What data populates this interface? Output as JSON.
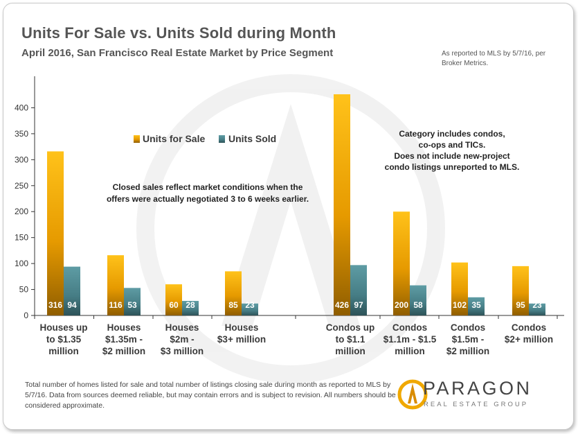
{
  "title": "Units For Sale vs. Units Sold during Month",
  "subtitle": "April 2016, San Francisco Real Estate Market by Price Segment",
  "source_note": "As reported to MLS by 5/7/16, per Broker Metrics.",
  "footnote": "Total number of homes listed for sale and total number of listings closing sale during month as reported to MLS by 5/7/16. Data from sources deemed reliable, but may contain errors and is subject to revision. All numbers should be considered approximate.",
  "brand": {
    "name": "PARAGON",
    "tagline": "REAL ESTATE GROUP",
    "logo_icon": "paragon-a-logo"
  },
  "colors": {
    "for_sale": "#f0a800",
    "sold": "#4f8a92",
    "for_sale_dark": "#8f5d00",
    "sold_dark": "#2d5358"
  },
  "chart_data": {
    "type": "bar",
    "title": "Units For Sale vs. Units Sold during Month",
    "xlabel": "",
    "ylabel": "",
    "ylim": [
      0,
      450
    ],
    "yticks": [
      0,
      50,
      100,
      150,
      200,
      250,
      300,
      350,
      400
    ],
    "grid": false,
    "legend_position": "upper-center",
    "categories": [
      [
        "Houses up",
        "to $1.35",
        "million"
      ],
      [
        "Houses",
        "$1.35m -",
        "$2 million"
      ],
      [
        "Houses",
        "$2m -",
        "$3 million"
      ],
      [
        "Houses",
        "$3+ million"
      ],
      [
        "Condos up",
        "to $1.1",
        "million"
      ],
      [
        "Condos",
        "$1.1m - $1.5",
        "million"
      ],
      [
        "Condos",
        "$1.5m -",
        "$2 million"
      ],
      [
        "Condos",
        "$2+ million"
      ]
    ],
    "series": [
      {
        "name": "Units for Sale",
        "values": [
          316,
          116,
          60,
          85,
          426,
          200,
          102,
          95
        ]
      },
      {
        "name": "Units Sold",
        "values": [
          94,
          53,
          28,
          23,
          97,
          58,
          35,
          23
        ]
      }
    ],
    "annotations": [
      [
        "Closed sales reflect market conditions when the",
        "offers were actually negotiated 3 to 6 weeks earlier."
      ],
      [
        "Category includes condos,",
        "co-ops and TICs.",
        "Does not include new-project",
        "condo listings unreported to MLS."
      ]
    ]
  }
}
